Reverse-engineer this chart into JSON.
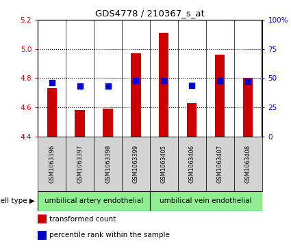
{
  "title": "GDS4778 / 210367_s_at",
  "samples": [
    "GSM1063396",
    "GSM1063397",
    "GSM1063398",
    "GSM1063399",
    "GSM1063405",
    "GSM1063406",
    "GSM1063407",
    "GSM1063408"
  ],
  "transformed_count": [
    4.73,
    4.58,
    4.59,
    4.97,
    5.11,
    4.63,
    4.96,
    4.8
  ],
  "percentile_rank": [
    46,
    43,
    43,
    48,
    48,
    44,
    48,
    47
  ],
  "bar_bottom": 4.4,
  "ylim_left": [
    4.4,
    5.2
  ],
  "ylim_right": [
    0,
    100
  ],
  "yticks_left": [
    4.4,
    4.6,
    4.8,
    5.0,
    5.2
  ],
  "yticks_right": [
    0,
    25,
    50,
    75,
    100
  ],
  "bar_color": "#cc0000",
  "dot_color": "#0000cc",
  "group1_label": "umbilical artery endothelial",
  "group2_label": "umbilical vein endothelial",
  "group1_count": 4,
  "group2_count": 4,
  "cell_type_label": "cell type",
  "legend_bar_label": "transformed count",
  "legend_dot_label": "percentile rank within the sample",
  "bar_width": 0.35,
  "dot_size": 30,
  "group_bg_color": "#90ee90",
  "sample_bg_color": "#d3d3d3",
  "grid_dotted_at": [
    4.6,
    4.8,
    5.0
  ],
  "right_tick_labels": [
    "0",
    "25",
    "50",
    "75",
    "100%"
  ],
  "fig_width": 4.25,
  "fig_height": 3.63
}
